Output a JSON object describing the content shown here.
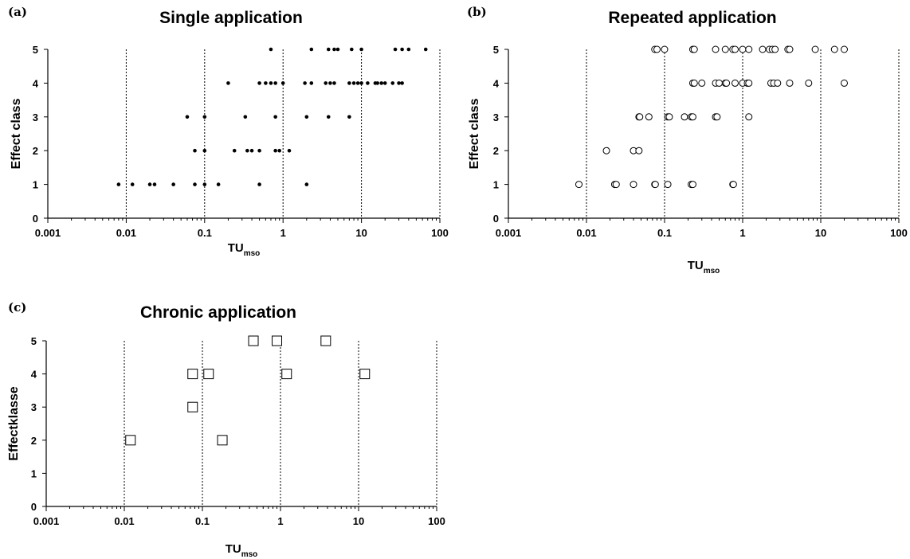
{
  "chart_data": [
    {
      "type": "scatter",
      "panel": "(a)",
      "title": "Single application",
      "xlabel": "TU",
      "xlabel_sub": "mso",
      "ylabel": "Effect class",
      "xscale": "log",
      "xlim": [
        0.001,
        100
      ],
      "ylim": [
        0,
        5
      ],
      "xticks": [
        "0.001",
        "0.01",
        "0.1",
        "1",
        "10",
        "100"
      ],
      "yticks": [
        "0",
        "1",
        "2",
        "3",
        "4",
        "5"
      ],
      "grid": "vertical dotted lines at decades",
      "marker": "filled-circle",
      "points": [
        [
          0.008,
          1
        ],
        [
          0.012,
          1
        ],
        [
          0.02,
          1
        ],
        [
          0.023,
          1
        ],
        [
          0.04,
          1
        ],
        [
          0.075,
          1
        ],
        [
          0.1,
          1
        ],
        [
          0.15,
          1
        ],
        [
          0.5,
          1
        ],
        [
          2,
          1
        ],
        [
          0.075,
          2
        ],
        [
          0.1,
          2
        ],
        [
          0.24,
          2
        ],
        [
          0.35,
          2
        ],
        [
          0.4,
          2
        ],
        [
          0.5,
          2
        ],
        [
          0.8,
          2
        ],
        [
          0.9,
          2
        ],
        [
          1.2,
          2
        ],
        [
          0.06,
          3
        ],
        [
          0.1,
          3
        ],
        [
          0.33,
          3
        ],
        [
          0.8,
          3
        ],
        [
          2,
          3
        ],
        [
          3.8,
          3
        ],
        [
          7,
          3
        ],
        [
          0.2,
          4
        ],
        [
          0.5,
          4
        ],
        [
          0.6,
          4
        ],
        [
          0.7,
          4
        ],
        [
          0.8,
          4
        ],
        [
          1,
          4
        ],
        [
          1.9,
          4
        ],
        [
          2.3,
          4
        ],
        [
          3.5,
          4
        ],
        [
          4,
          4
        ],
        [
          4.5,
          4
        ],
        [
          7,
          4
        ],
        [
          8,
          4
        ],
        [
          9,
          4
        ],
        [
          10,
          4
        ],
        [
          12,
          4
        ],
        [
          15,
          4
        ],
        [
          16,
          4
        ],
        [
          18,
          4
        ],
        [
          20,
          4
        ],
        [
          25,
          4
        ],
        [
          30,
          4
        ],
        [
          33,
          4
        ],
        [
          0.7,
          5
        ],
        [
          2.3,
          5
        ],
        [
          3.8,
          5
        ],
        [
          4.5,
          5
        ],
        [
          5,
          5
        ],
        [
          7.5,
          5
        ],
        [
          10,
          5
        ],
        [
          27,
          5
        ],
        [
          33,
          5
        ],
        [
          40,
          5
        ],
        [
          66,
          5
        ]
      ]
    },
    {
      "type": "scatter",
      "panel": "(b)",
      "title": "Repeated application",
      "xlabel": "TU",
      "xlabel_sub": "mso",
      "ylabel": "Effect class",
      "xscale": "log",
      "xlim": [
        0.001,
        100
      ],
      "ylim": [
        0,
        5
      ],
      "xticks": [
        "0.001",
        "0.01",
        "0.1",
        "1",
        "10",
        "100"
      ],
      "yticks": [
        "0",
        "1",
        "2",
        "3",
        "4",
        "5"
      ],
      "grid": "vertical dotted lines at decades",
      "marker": "open-circle",
      "points": [
        [
          0.008,
          1
        ],
        [
          0.023,
          1
        ],
        [
          0.024,
          1
        ],
        [
          0.04,
          1
        ],
        [
          0.075,
          1
        ],
        [
          0.076,
          1
        ],
        [
          0.11,
          1
        ],
        [
          0.22,
          1
        ],
        [
          0.23,
          1
        ],
        [
          0.75,
          1
        ],
        [
          0.76,
          1
        ],
        [
          0.018,
          2
        ],
        [
          0.04,
          2
        ],
        [
          0.047,
          2
        ],
        [
          0.047,
          3
        ],
        [
          0.048,
          3
        ],
        [
          0.063,
          3
        ],
        [
          0.11,
          3
        ],
        [
          0.115,
          3
        ],
        [
          0.18,
          3
        ],
        [
          0.22,
          3
        ],
        [
          0.23,
          3
        ],
        [
          0.45,
          3
        ],
        [
          0.47,
          3
        ],
        [
          1.2,
          3
        ],
        [
          0.23,
          4
        ],
        [
          0.24,
          4
        ],
        [
          0.3,
          4
        ],
        [
          0.45,
          4
        ],
        [
          0.5,
          4
        ],
        [
          0.6,
          4
        ],
        [
          0.62,
          4
        ],
        [
          0.8,
          4
        ],
        [
          1,
          4
        ],
        [
          1.15,
          4
        ],
        [
          1.2,
          4
        ],
        [
          2.3,
          4
        ],
        [
          2.5,
          4
        ],
        [
          2.8,
          4
        ],
        [
          4,
          4
        ],
        [
          7,
          4
        ],
        [
          20,
          4
        ],
        [
          0.075,
          5
        ],
        [
          0.08,
          5
        ],
        [
          0.1,
          5
        ],
        [
          0.23,
          5
        ],
        [
          0.24,
          5
        ],
        [
          0.45,
          5
        ],
        [
          0.6,
          5
        ],
        [
          0.75,
          5
        ],
        [
          0.8,
          5
        ],
        [
          1,
          5
        ],
        [
          1.2,
          5
        ],
        [
          1.8,
          5
        ],
        [
          2.2,
          5
        ],
        [
          2.4,
          5
        ],
        [
          2.6,
          5
        ],
        [
          3.8,
          5
        ],
        [
          4,
          5
        ],
        [
          8.5,
          5
        ],
        [
          15,
          5
        ],
        [
          20,
          5
        ]
      ]
    },
    {
      "type": "scatter",
      "panel": "(c)",
      "title": "Chronic application",
      "xlabel": "TU",
      "xlabel_sub": "mso",
      "ylabel": "Effectklasse",
      "xscale": "log",
      "xlim": [
        0.001,
        100
      ],
      "ylim": [
        0,
        5
      ],
      "xticks": [
        "0.001",
        "0.01",
        "0.1",
        "1",
        "10",
        "100"
      ],
      "yticks": [
        "0",
        "1",
        "2",
        "3",
        "4",
        "5"
      ],
      "grid": "vertical dotted lines at decades",
      "marker": "open-square",
      "points": [
        [
          0.012,
          2
        ],
        [
          0.18,
          2
        ],
        [
          0.075,
          3
        ],
        [
          0.075,
          4
        ],
        [
          0.12,
          4
        ],
        [
          1.2,
          4
        ],
        [
          12,
          4
        ],
        [
          0.45,
          5
        ],
        [
          0.9,
          5
        ],
        [
          3.8,
          5
        ]
      ]
    }
  ]
}
